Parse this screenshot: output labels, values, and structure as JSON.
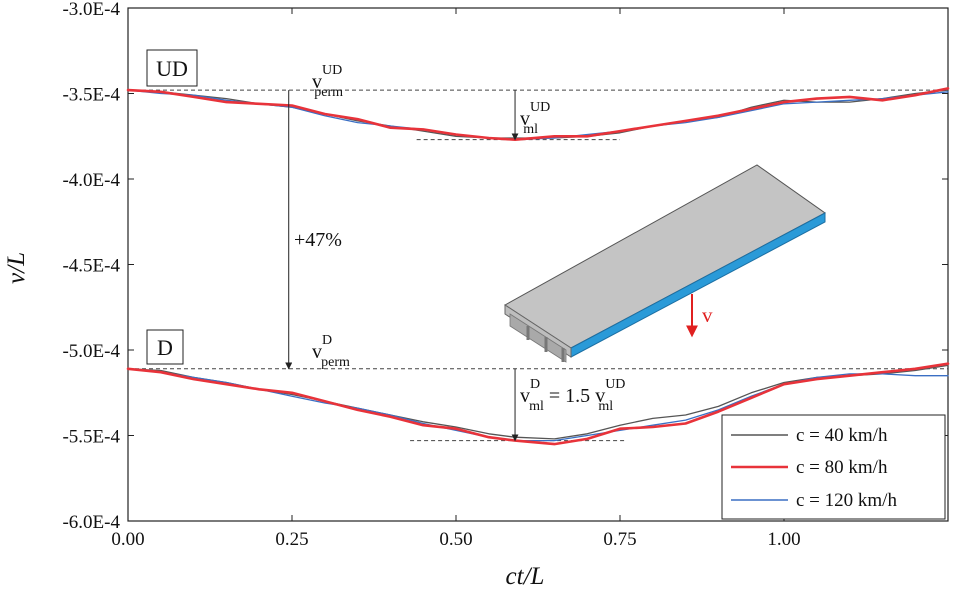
{
  "chart_data": {
    "type": "line",
    "title": "",
    "xlabel": "ct/L",
    "ylabel": "v/L",
    "xlim": [
      0,
      1.25
    ],
    "ylim": [
      -0.0006,
      -0.0003
    ],
    "x_ticks": [
      {
        "value": 0.0,
        "label": "0.00"
      },
      {
        "value": 0.25,
        "label": "0.25"
      },
      {
        "value": 0.5,
        "label": "0.50"
      },
      {
        "value": 0.75,
        "label": "0.75"
      },
      {
        "value": 1.0,
        "label": "1.00"
      }
    ],
    "y_ticks": [
      {
        "value": -0.0003,
        "label": "-3.0E-4"
      },
      {
        "value": -0.00035,
        "label": "-3.5E-4"
      },
      {
        "value": -0.0004,
        "label": "-4.0E-4"
      },
      {
        "value": -0.00045,
        "label": "-4.5E-4"
      },
      {
        "value": -0.0005,
        "label": "-5.0E-4"
      },
      {
        "value": -0.00055,
        "label": "-5.5E-4"
      },
      {
        "value": -0.0006,
        "label": "-6.0E-4"
      }
    ],
    "series": [
      {
        "name": "c = 40 km/h",
        "group": "UD",
        "color": "#555555",
        "x": [
          0.0,
          0.05,
          0.1,
          0.15,
          0.2,
          0.25,
          0.3,
          0.35,
          0.4,
          0.45,
          0.5,
          0.55,
          0.59,
          0.65,
          0.7,
          0.75,
          0.8,
          0.85,
          0.9,
          0.95,
          1.0,
          1.05,
          1.1,
          1.15,
          1.2,
          1.25
        ],
        "values": [
          -0.000348,
          -0.000349,
          -0.000351,
          -0.000353,
          -0.000356,
          -0.000358,
          -0.000362,
          -0.000366,
          -0.000369,
          -0.000372,
          -0.000375,
          -0.000376,
          -0.000376,
          -0.000376,
          -0.000375,
          -0.000373,
          -0.000369,
          -0.000366,
          -0.000364,
          -0.000358,
          -0.000354,
          -0.000355,
          -0.000355,
          -0.000353,
          -0.00035,
          -0.000348
        ]
      },
      {
        "name": "c = 80 km/h",
        "group": "UD",
        "color": "#e8333a",
        "x": [
          0.0,
          0.05,
          0.1,
          0.15,
          0.2,
          0.25,
          0.3,
          0.35,
          0.4,
          0.45,
          0.5,
          0.55,
          0.59,
          0.65,
          0.7,
          0.75,
          0.8,
          0.85,
          0.9,
          0.95,
          1.0,
          1.05,
          1.1,
          1.15,
          1.2,
          1.25
        ],
        "values": [
          -0.000348,
          -0.000349,
          -0.000352,
          -0.000355,
          -0.000356,
          -0.000357,
          -0.000362,
          -0.000365,
          -0.00037,
          -0.000371,
          -0.000374,
          -0.000376,
          -0.000377,
          -0.000375,
          -0.000375,
          -0.000372,
          -0.000369,
          -0.000366,
          -0.000363,
          -0.000359,
          -0.000355,
          -0.000353,
          -0.000352,
          -0.000354,
          -0.000351,
          -0.000347
        ]
      },
      {
        "name": "c = 120 km/h",
        "group": "UD",
        "color": "#3a6fc4",
        "x": [
          0.0,
          0.05,
          0.1,
          0.15,
          0.2,
          0.25,
          0.3,
          0.35,
          0.4,
          0.45,
          0.5,
          0.55,
          0.59,
          0.65,
          0.7,
          0.75,
          0.8,
          0.85,
          0.9,
          0.95,
          1.0,
          1.05,
          1.1,
          1.15,
          1.2,
          1.25
        ],
        "values": [
          -0.000348,
          -0.00035,
          -0.000351,
          -0.000354,
          -0.000356,
          -0.000358,
          -0.000363,
          -0.000367,
          -0.000369,
          -0.000371,
          -0.000374,
          -0.000376,
          -0.000377,
          -0.000376,
          -0.000374,
          -0.000372,
          -0.000369,
          -0.000367,
          -0.000364,
          -0.00036,
          -0.000356,
          -0.000355,
          -0.000354,
          -0.000353,
          -0.000351,
          -0.000349
        ]
      },
      {
        "name": "c = 40 km/h",
        "group": "D",
        "color": "#555555",
        "x": [
          0.0,
          0.05,
          0.1,
          0.15,
          0.2,
          0.25,
          0.3,
          0.35,
          0.4,
          0.45,
          0.5,
          0.55,
          0.59,
          0.65,
          0.7,
          0.75,
          0.8,
          0.85,
          0.9,
          0.95,
          1.0,
          1.05,
          1.1,
          1.15,
          1.2,
          1.25
        ],
        "values": [
          -0.000511,
          -0.000512,
          -0.000516,
          -0.000519,
          -0.000523,
          -0.000526,
          -0.00053,
          -0.000534,
          -0.000538,
          -0.000542,
          -0.000545,
          -0.000549,
          -0.000551,
          -0.000552,
          -0.000549,
          -0.000544,
          -0.00054,
          -0.000538,
          -0.000533,
          -0.000525,
          -0.000519,
          -0.000516,
          -0.000515,
          -0.000514,
          -0.000512,
          -0.000509
        ]
      },
      {
        "name": "c = 80 km/h",
        "group": "D",
        "color": "#e8333a",
        "x": [
          0.0,
          0.05,
          0.1,
          0.15,
          0.2,
          0.25,
          0.3,
          0.35,
          0.4,
          0.45,
          0.5,
          0.55,
          0.59,
          0.65,
          0.7,
          0.75,
          0.8,
          0.85,
          0.9,
          0.95,
          1.0,
          1.05,
          1.1,
          1.15,
          1.2,
          1.25
        ],
        "values": [
          -0.000511,
          -0.000513,
          -0.000517,
          -0.00052,
          -0.000523,
          -0.000525,
          -0.00053,
          -0.000535,
          -0.000539,
          -0.000544,
          -0.000546,
          -0.000551,
          -0.000553,
          -0.000555,
          -0.000552,
          -0.000546,
          -0.000545,
          -0.000543,
          -0.000536,
          -0.000528,
          -0.00052,
          -0.000517,
          -0.000515,
          -0.000513,
          -0.000511,
          -0.000508
        ]
      },
      {
        "name": "c = 120 km/h",
        "group": "D",
        "color": "#3a6fc4",
        "x": [
          0.0,
          0.05,
          0.1,
          0.15,
          0.2,
          0.25,
          0.3,
          0.35,
          0.4,
          0.45,
          0.5,
          0.55,
          0.59,
          0.65,
          0.7,
          0.75,
          0.8,
          0.85,
          0.9,
          0.95,
          1.0,
          1.05,
          1.1,
          1.15,
          1.2,
          1.25
        ],
        "values": [
          -0.000511,
          -0.000513,
          -0.000516,
          -0.000519,
          -0.000523,
          -0.000527,
          -0.000531,
          -0.000534,
          -0.000538,
          -0.000543,
          -0.000547,
          -0.000551,
          -0.000553,
          -0.000553,
          -0.00055,
          -0.000547,
          -0.000544,
          -0.000541,
          -0.000535,
          -0.000527,
          -0.00052,
          -0.000516,
          -0.000514,
          -0.000514,
          -0.000515,
          -0.000515
        ]
      }
    ],
    "reference_lines": [
      {
        "y": -0.000348,
        "note": "UD permanent deflection"
      },
      {
        "y": -0.000511,
        "note": "D permanent deflection"
      }
    ],
    "min_markers": [
      {
        "x": 0.59,
        "y": -0.000377
      },
      {
        "x": 0.59,
        "y": -0.000553
      }
    ],
    "annotations": {
      "ud_box": "UD",
      "d_box": "D",
      "ud_perm": {
        "base": "v",
        "sup": "UD",
        "sub": "perm"
      },
      "d_perm": {
        "base": "v",
        "sup": "D",
        "sub": "perm"
      },
      "ud_ml": {
        "base": "v",
        "sup": "UD",
        "sub": "ml"
      },
      "d_ml_lhs": {
        "base": "v",
        "sup": "D",
        "sub": "ml"
      },
      "d_ml_eq": " = 1.5 ",
      "d_ml_rhs": {
        "base": "v",
        "sup": "UD",
        "sub": "ml"
      },
      "percent": "+47%",
      "load_label": "v"
    },
    "legend": {
      "position": "bottom-right",
      "entries": [
        {
          "label": "c = 40 km/h",
          "color": "#555555"
        },
        {
          "label": "c = 80 km/h",
          "color": "#e8333a"
        },
        {
          "label": "c = 120 km/h",
          "color": "#3a6fc4"
        }
      ]
    }
  }
}
